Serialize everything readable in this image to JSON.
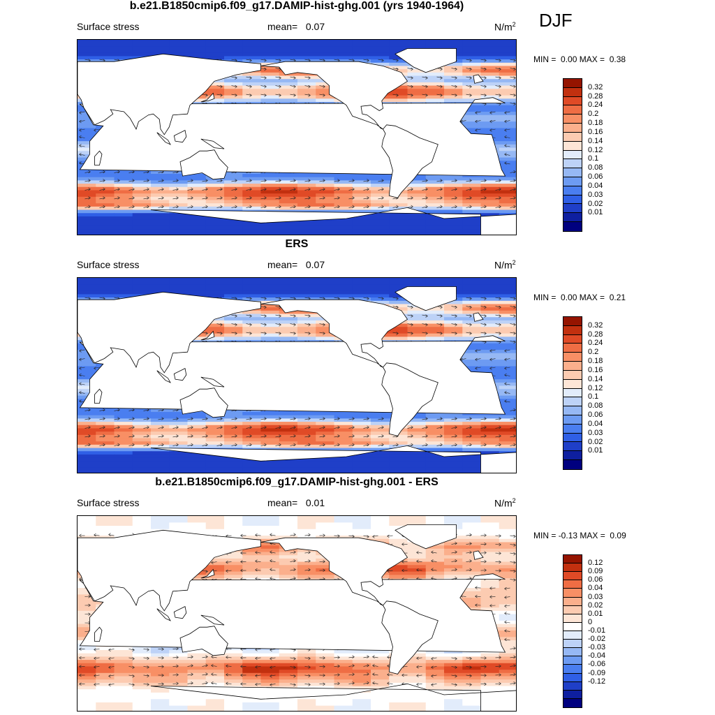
{
  "season": "DJF",
  "colors": {
    "sequential": [
      "#00007f",
      "#0e1fa0",
      "#1f3fc8",
      "#2f5fe6",
      "#4a7ef0",
      "#6d9bf2",
      "#96b8f4",
      "#bdd2f7",
      "#e2ecfb",
      "#fde5d6",
      "#fccbb1",
      "#fbaf8c",
      "#f88f65",
      "#ef6d44",
      "#e04a26",
      "#c2300f",
      "#951400"
    ],
    "diverging": [
      "#00007f",
      "#0e1fa0",
      "#1f3fc8",
      "#2f5fe6",
      "#4a7ef0",
      "#6d9bf2",
      "#96b8f4",
      "#bdd2f7",
      "#e2ecfb",
      "#ffffff",
      "#fde5d6",
      "#fccbb1",
      "#fbaf8c",
      "#f88f65",
      "#ef6d44",
      "#e04a26",
      "#c2300f",
      "#951400"
    ]
  },
  "panels": [
    {
      "title": "b.e21.B1850cmip6.f09_g17.DAMIP-hist-ghg.001 (yrs 1940-1964)",
      "variable": "Surface stress",
      "mean_label": "mean=",
      "mean": "0.07",
      "unit_base": "N/m",
      "unit_exp": "2",
      "min_label": "MIN =",
      "min": "0.00",
      "max_label": "MAX =",
      "max": "0.38",
      "palette": "sequential",
      "colorbar_ticks": [
        "0.32",
        "0.28",
        "0.24",
        "0.2",
        "0.18",
        "0.16",
        "0.14",
        "0.12",
        "0.1",
        "0.08",
        "0.06",
        "0.04",
        "0.03",
        "0.02",
        "0.01"
      ]
    },
    {
      "title": "ERS",
      "variable": "Surface stress",
      "mean_label": "mean=",
      "mean": "0.07",
      "unit_base": "N/m",
      "unit_exp": "2",
      "min_label": "MIN =",
      "min": "0.00",
      "max_label": "MAX =",
      "max": "0.21",
      "palette": "sequential",
      "colorbar_ticks": [
        "0.32",
        "0.28",
        "0.24",
        "0.2",
        "0.18",
        "0.16",
        "0.14",
        "0.12",
        "0.1",
        "0.08",
        "0.06",
        "0.04",
        "0.03",
        "0.02",
        "0.01"
      ]
    },
    {
      "title": "b.e21.B1850cmip6.f09_g17.DAMIP-hist-ghg.001 - ERS",
      "variable": "Surface stress",
      "mean_label": "mean=",
      "mean": "0.01",
      "unit_base": "N/m",
      "unit_exp": "2",
      "min_label": "MIN =",
      "min": "-0.13",
      "max_label": "MAX =",
      "max": "0.09",
      "palette": "diverging",
      "colorbar_ticks": [
        "0.12",
        "0.09",
        "0.06",
        "0.04",
        "0.03",
        "0.02",
        "0.01",
        "0",
        "-0.01",
        "-0.02",
        "-0.03",
        "-0.04",
        "-0.06",
        "-0.09",
        "-0.12"
      ]
    }
  ]
}
